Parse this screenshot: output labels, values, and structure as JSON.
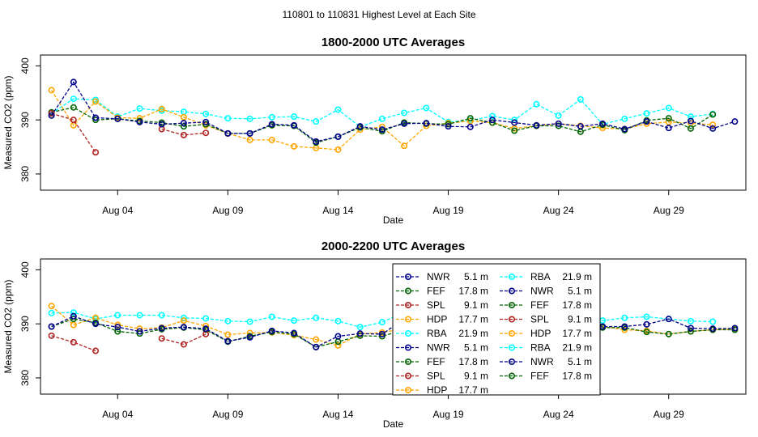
{
  "suptitle": "110801  to  110831 Highest Level at Each Site",
  "chart_data": [
    {
      "type": "line",
      "title": "1800-2000 UTC Averages",
      "xlabel": "Date",
      "ylabel": "Measured CO2 (ppm)",
      "xlim": [
        0.5,
        32.5
      ],
      "ylim": [
        377,
        402
      ],
      "yticks": [
        380,
        390,
        400
      ],
      "xticks": [
        {
          "day": 4,
          "label": "Aug 04"
        },
        {
          "day": 9,
          "label": "Aug 09"
        },
        {
          "day": 14,
          "label": "Aug 14"
        },
        {
          "day": 19,
          "label": "Aug 19"
        },
        {
          "day": 24,
          "label": "Aug 24"
        },
        {
          "day": 29,
          "label": "Aug 29"
        }
      ],
      "series": [
        {
          "name": "RBA 21.9 m",
          "color": "#00ffff",
          "x": [
            1,
            2,
            3,
            4,
            5,
            6,
            7,
            8,
            9,
            10,
            11,
            12,
            13,
            14,
            15,
            16,
            17,
            18,
            19,
            20,
            21,
            22,
            23,
            24,
            25,
            26,
            27,
            28,
            29,
            30,
            31
          ],
          "values": [
            391.2,
            393.9,
            393.7,
            390.6,
            392.1,
            391.7,
            391.5,
            391.1,
            390.3,
            390.2,
            390.5,
            390.6,
            389.7,
            391.9,
            388.7,
            390.2,
            391.3,
            392.2,
            389.6,
            389.9,
            390.7,
            390.0,
            392.9,
            390.8,
            393.8,
            389.2,
            390.2,
            391.2,
            392.2,
            390.6,
            391.1
          ]
        },
        {
          "name": "HDP 17.7 m",
          "color": "#ffa500",
          "x": [
            1,
            2,
            3,
            4,
            5,
            6,
            7,
            8,
            9,
            10,
            11,
            12,
            13,
            14,
            15,
            16,
            17,
            18,
            19,
            20,
            21,
            22,
            23,
            24,
            25,
            26,
            27,
            28,
            29,
            30,
            31
          ],
          "values": [
            395.5,
            389.0,
            393.4,
            390.4,
            390.3,
            392.0,
            390.5,
            389.0,
            387.5,
            386.3,
            386.3,
            385.1,
            384.8,
            384.5,
            388.2,
            388.7,
            385.2,
            388.9,
            389.4,
            389.8,
            389.5,
            388.4,
            388.9,
            389.3,
            388.9,
            388.5,
            388.3,
            389.3,
            389.6,
            389.4,
            389.1
          ]
        },
        {
          "name": "FEF 17.8 m",
          "color": "#006400",
          "x": [
            1,
            2,
            3,
            4,
            5,
            6,
            7,
            8,
            9,
            10,
            11,
            12,
            13,
            14,
            15,
            16,
            17,
            18,
            19,
            20,
            21,
            22,
            23,
            24,
            25,
            26,
            27,
            28,
            29,
            30,
            31
          ],
          "values": [
            391.4,
            392.3,
            390.0,
            390.2,
            389.8,
            389.5,
            388.8,
            389.2,
            387.5,
            387.5,
            389.0,
            388.9,
            385.8,
            386.9,
            388.6,
            387.9,
            389.5,
            389.3,
            389.2,
            390.3,
            389.5,
            388.0,
            388.9,
            388.9,
            387.8,
            389.1,
            388.1,
            389.9,
            390.3,
            388.4,
            391.0
          ]
        },
        {
          "name": "SPL 9.1 m",
          "color": "#b22222",
          "x": [
            1,
            2,
            3,
            4,
            5,
            6,
            7,
            8
          ],
          "values": [
            391.2,
            390.0,
            384.0,
            null,
            null,
            388.3,
            387.2,
            387.6
          ]
        },
        {
          "name": "NWR 5.1 m",
          "color": "#00008b",
          "x": [
            1,
            2,
            3,
            4,
            5,
            6,
            7,
            8,
            9,
            10,
            11,
            12,
            13,
            14,
            15,
            16,
            17,
            18,
            19,
            20,
            21,
            22,
            23,
            24,
            25,
            26,
            27,
            28,
            29,
            30,
            31,
            32
          ],
          "values": [
            390.8,
            397.0,
            390.4,
            390.2,
            389.6,
            389.2,
            389.4,
            389.6,
            387.5,
            387.5,
            389.2,
            389.0,
            386.0,
            386.9,
            388.8,
            388.2,
            389.3,
            389.4,
            388.8,
            388.7,
            390.0,
            389.5,
            389.0,
            389.3,
            388.8,
            389.3,
            388.3,
            389.7,
            388.5,
            389.8,
            388.4,
            389.7
          ]
        }
      ]
    },
    {
      "type": "line",
      "title": "2000-2200 UTC Averages",
      "xlabel": "Date",
      "ylabel": "Measured CO2 (ppm)",
      "xlim": [
        0.5,
        32.5
      ],
      "ylim": [
        377,
        402
      ],
      "yticks": [
        380,
        390,
        400
      ],
      "xticks": [
        {
          "day": 4,
          "label": "Aug 04"
        },
        {
          "day": 9,
          "label": "Aug 09"
        },
        {
          "day": 14,
          "label": "Aug 14"
        },
        {
          "day": 19,
          "label": "Aug 19"
        },
        {
          "day": 24,
          "label": "Aug 24"
        },
        {
          "day": 29,
          "label": "Aug 29"
        }
      ],
      "series": [
        {
          "name": "RBA 21.9 m",
          "color": "#00ffff",
          "x": [
            1,
            2,
            3,
            4,
            5,
            6,
            7,
            8,
            9,
            10,
            11,
            12,
            13,
            14,
            15,
            16,
            17,
            18,
            19,
            20,
            21,
            22,
            23,
            24,
            25,
            26,
            27,
            28,
            29,
            30,
            31
          ],
          "values": [
            392.0,
            392.1,
            390.9,
            391.6,
            391.6,
            391.6,
            391.1,
            391.0,
            390.5,
            390.4,
            391.3,
            390.6,
            391.1,
            390.5,
            389.4,
            390.3,
            392.2,
            390.6,
            392.0,
            391.5,
            389.4,
            389.9,
            389.6,
            392.1,
            390.3,
            390.6,
            391.1,
            391.3,
            390.9,
            390.5,
            390.4
          ]
        },
        {
          "name": "HDP 17.7 m",
          "color": "#ffa500",
          "x": [
            1,
            2,
            3,
            4,
            5,
            6,
            7,
            8,
            9,
            10,
            11,
            12,
            13,
            14,
            15,
            16,
            17,
            18,
            19,
            20,
            21,
            22,
            23,
            24,
            25,
            26,
            27,
            28,
            29,
            30,
            31,
            32
          ],
          "values": [
            393.3,
            389.8,
            391.1,
            389.8,
            389.1,
            389.3,
            390.6,
            389.6,
            388.0,
            388.3,
            388.4,
            387.9,
            387.1,
            386.0,
            388.1,
            388.4,
            389.1,
            389.6,
            388.7,
            389.2,
            389.5,
            389.1,
            388.7,
            388.3,
            389.2,
            389.5,
            388.9,
            388.7,
            388.1,
            388.6,
            388.9,
            389.0
          ]
        },
        {
          "name": "FEF 17.8 m",
          "color": "#006400",
          "x": [
            1,
            2,
            3,
            4,
            5,
            6,
            7,
            8,
            9,
            10,
            11,
            12,
            13,
            14,
            15,
            16,
            17,
            18,
            19,
            20,
            21,
            22,
            23,
            24,
            25,
            26,
            27,
            28,
            29,
            30,
            31,
            32
          ],
          "values": [
            389.5,
            390.9,
            390.2,
            388.6,
            388.2,
            389.0,
            389.3,
            388.9,
            386.7,
            387.7,
            388.5,
            388.1,
            385.7,
            386.7,
            387.8,
            387.7,
            388.9,
            389.1,
            389.4,
            389.3,
            388.6,
            387.0,
            388.3,
            389.0,
            388.6,
            389.3,
            389.3,
            388.5,
            388.1,
            388.6,
            388.9,
            388.9
          ]
        },
        {
          "name": "SPL 9.1 m",
          "color": "#b22222",
          "x": [
            1,
            2,
            3,
            4,
            5,
            6,
            7,
            8
          ],
          "values": [
            387.8,
            386.6,
            385.0,
            null,
            null,
            387.3,
            386.2,
            388.1
          ]
        },
        {
          "name": "NWR 5.1 m",
          "color": "#00008b",
          "x": [
            1,
            2,
            3,
            4,
            5,
            6,
            7,
            8,
            9,
            10,
            11,
            12,
            13,
            14,
            15,
            16,
            17,
            18,
            19,
            20,
            21,
            22,
            23,
            24,
            25,
            26,
            27,
            28,
            29,
            30,
            31,
            32
          ],
          "values": [
            389.5,
            391.4,
            390.0,
            389.4,
            388.6,
            389.2,
            389.4,
            389.1,
            386.8,
            387.5,
            388.7,
            388.3,
            385.7,
            387.7,
            388.2,
            388.1,
            390.9,
            389.4,
            390.4,
            394.8,
            392.6,
            390.9,
            389.4,
            388.8,
            388.8,
            389.5,
            389.5,
            389.9,
            390.9,
            389.2,
            389.1,
            389.2
          ]
        }
      ]
    }
  ],
  "legend": {
    "position": "bottom-right",
    "entries": [
      {
        "site": "NWR",
        "height": "5.1 m",
        "color": "#00008b"
      },
      {
        "site": "FEF",
        "height": "17.8 m",
        "color": "#006400"
      },
      {
        "site": "SPL",
        "height": "9.1 m",
        "color": "#b22222"
      },
      {
        "site": "HDP",
        "height": "17.7 m",
        "color": "#ffa500"
      },
      {
        "site": "RBA",
        "height": "21.9 m",
        "color": "#00ffff"
      },
      {
        "site": "NWR",
        "height": "5.1 m",
        "color": "#00008b"
      },
      {
        "site": "FEF",
        "height": "17.8 m",
        "color": "#006400"
      },
      {
        "site": "SPL",
        "height": "9.1 m",
        "color": "#b22222"
      },
      {
        "site": "HDP",
        "height": "17.7 m",
        "color": "#ffa500"
      },
      {
        "site": "RBA",
        "height": "21.9 m",
        "color": "#00ffff"
      },
      {
        "site": "NWR",
        "height": "5.1 m",
        "color": "#00008b"
      },
      {
        "site": "FEF",
        "height": "17.8 m",
        "color": "#006400"
      },
      {
        "site": "SPL",
        "height": "9.1 m",
        "color": "#b22222"
      },
      {
        "site": "HDP",
        "height": "17.7 m",
        "color": "#ffa500"
      },
      {
        "site": "RBA",
        "height": "21.9 m",
        "color": "#00ffff"
      },
      {
        "site": "NWR",
        "height": "5.1 m",
        "color": "#00008b"
      },
      {
        "site": "FEF",
        "height": "17.8 m",
        "color": "#006400"
      }
    ]
  }
}
